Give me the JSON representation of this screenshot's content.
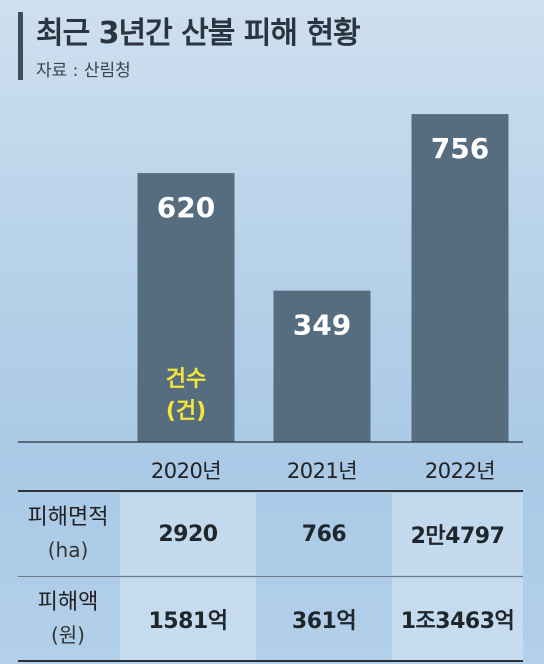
{
  "header": {
    "title": "최근 3년간 산불 피해 현황",
    "source": "자료 : 산림청"
  },
  "chart_data": {
    "type": "bar",
    "categories": [
      "2020년",
      "2021년",
      "2022년"
    ],
    "series": [
      {
        "name": "건수 (건)",
        "values": [
          620,
          349,
          756
        ]
      }
    ],
    "series_label_lines": [
      "건수",
      "(건)"
    ],
    "ylim": [
      0,
      800
    ],
    "bar_color": "#566d80",
    "value_label_color": "#ffffff",
    "series_label_color": "#f5e53a"
  },
  "table": {
    "rows": [
      {
        "label": "피해면적",
        "unit": "(ha)",
        "values": [
          "2920",
          "766",
          "2만4797"
        ]
      },
      {
        "label": "피해액",
        "unit": "(원)",
        "values": [
          "1581억",
          "361억",
          "1조3463억"
        ]
      }
    ]
  }
}
